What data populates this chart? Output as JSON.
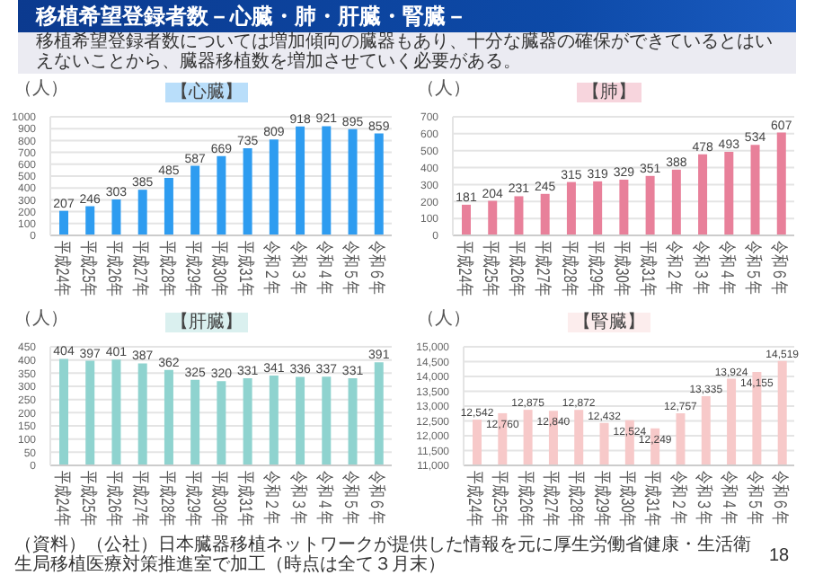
{
  "chart_data": [
    {
      "type": "bar",
      "title": "【心臓】",
      "ylabel": "（人）",
      "annotations": [
        "移植希望登録者数－心臓・肺・肝臓・腎臓－",
        "移植希望登録者数については増加傾向の臓器もあり、十分な臓器の確保ができているとはいえないことから、臓器移植数を増加させていく必要がある。",
        "（資料）（公社）日本臓器移植ネットワークが提供した情報を元に厚生労働省健康・生活衛生局移植医療対策推進室で加工（時点は全て３月末）",
        "18"
      ],
      "categories": [
        "平成24年",
        "平成25年",
        "平成26年",
        "平成27年",
        "平成28年",
        "平成29年",
        "平成30年",
        "平成31年",
        "令和２年",
        "令和３年",
        "令和４年",
        "令和５年",
        "令和６年"
      ],
      "values": [
        207,
        246,
        303,
        385,
        485,
        587,
        669,
        735,
        809,
        918,
        921,
        895,
        859
      ],
      "color": "#2e9cf0",
      "ylim": [
        0,
        1000
      ],
      "yticks": [
        0,
        100,
        200,
        300,
        400,
        500,
        600,
        700,
        800,
        900,
        1000
      ],
      "grid": "y",
      "data_labels": true
    },
    {
      "type": "bar",
      "title": "【肺】",
      "ylabel": "（人）",
      "categories": [
        "平成24年",
        "平成25年",
        "平成26年",
        "平成27年",
        "平成28年",
        "平成29年",
        "平成30年",
        "平成31年",
        "令和２年",
        "令和３年",
        "令和４年",
        "令和５年",
        "令和６年"
      ],
      "values": [
        181,
        204,
        231,
        245,
        315,
        319,
        329,
        351,
        388,
        478,
        493,
        534,
        607
      ],
      "color": "#e8809a",
      "ylim": [
        0,
        700
      ],
      "yticks": [
        0,
        100,
        200,
        300,
        400,
        500,
        600,
        700
      ],
      "grid": "y",
      "data_labels": true
    },
    {
      "type": "bar",
      "title": "【肝臓】",
      "ylabel": "（人）",
      "categories": [
        "平成24年",
        "平成25年",
        "平成26年",
        "平成27年",
        "平成28年",
        "平成29年",
        "平成30年",
        "平成31年",
        "令和２年",
        "令和３年",
        "令和４年",
        "令和５年",
        "令和６年"
      ],
      "values": [
        404,
        397,
        401,
        387,
        362,
        325,
        320,
        331,
        341,
        336,
        337,
        331,
        391
      ],
      "color": "#8fd3cf",
      "ylim": [
        0,
        450
      ],
      "yticks": [
        0,
        50,
        100,
        150,
        200,
        250,
        300,
        350,
        400,
        450
      ],
      "grid": "y",
      "data_labels": true
    },
    {
      "type": "bar",
      "title": "【腎臓】",
      "ylabel": "（人）",
      "categories": [
        "平成24年",
        "平成25年",
        "平成26年",
        "平成27年",
        "平成28年",
        "平成29年",
        "平成30年",
        "平成31年",
        "令和２年",
        "令和３年",
        "令和４年",
        "令和５年",
        "令和６年"
      ],
      "values": [
        12542,
        12760,
        12875,
        12840,
        12872,
        12432,
        12524,
        12249,
        12757,
        13335,
        13924,
        14155,
        14519
      ],
      "color": "#f7c9c9",
      "value_labels": [
        "12,542",
        "12,760",
        "12,875",
        "12,840",
        "12,872",
        "12,432",
        "12,524",
        "12,249",
        "12,757",
        "13,335",
        "13,924",
        "14,155",
        "14,519"
      ],
      "ylim": [
        11000,
        15000
      ],
      "yticks": [
        {
          "value": 11000,
          "label": "11,000"
        },
        {
          "value": 11500,
          "label": "11,500"
        },
        {
          "value": 12000,
          "label": "12,000"
        },
        {
          "value": 12500,
          "label": "12,500"
        },
        {
          "value": 13000,
          "label": "13,000"
        },
        {
          "value": 13500,
          "label": "13,500"
        },
        {
          "value": 14000,
          "label": "14,000"
        },
        {
          "value": 14500,
          "label": "14,500"
        },
        {
          "value": 15000,
          "label": "15,000"
        }
      ],
      "grid": "y"
    }
  ]
}
